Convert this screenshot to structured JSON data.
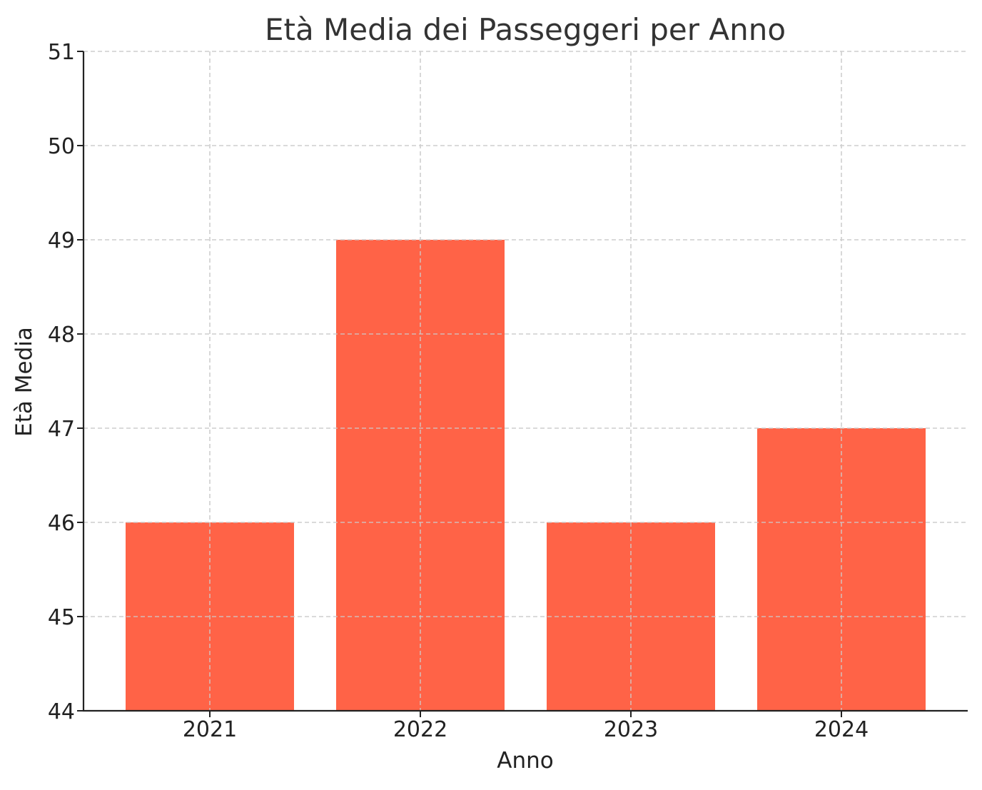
{
  "chart_data": {
    "type": "bar",
    "title": "Età Media dei Passeggeri per Anno",
    "xlabel": "Anno",
    "ylabel": "Età Media",
    "categories": [
      "2021",
      "2022",
      "2023",
      "2024"
    ],
    "values": [
      46,
      49,
      46,
      47
    ],
    "ylim": [
      44,
      51
    ],
    "yticks": [
      44,
      45,
      46,
      47,
      48,
      49,
      50,
      51
    ],
    "grid": true,
    "bar_color": "#ff6347"
  }
}
